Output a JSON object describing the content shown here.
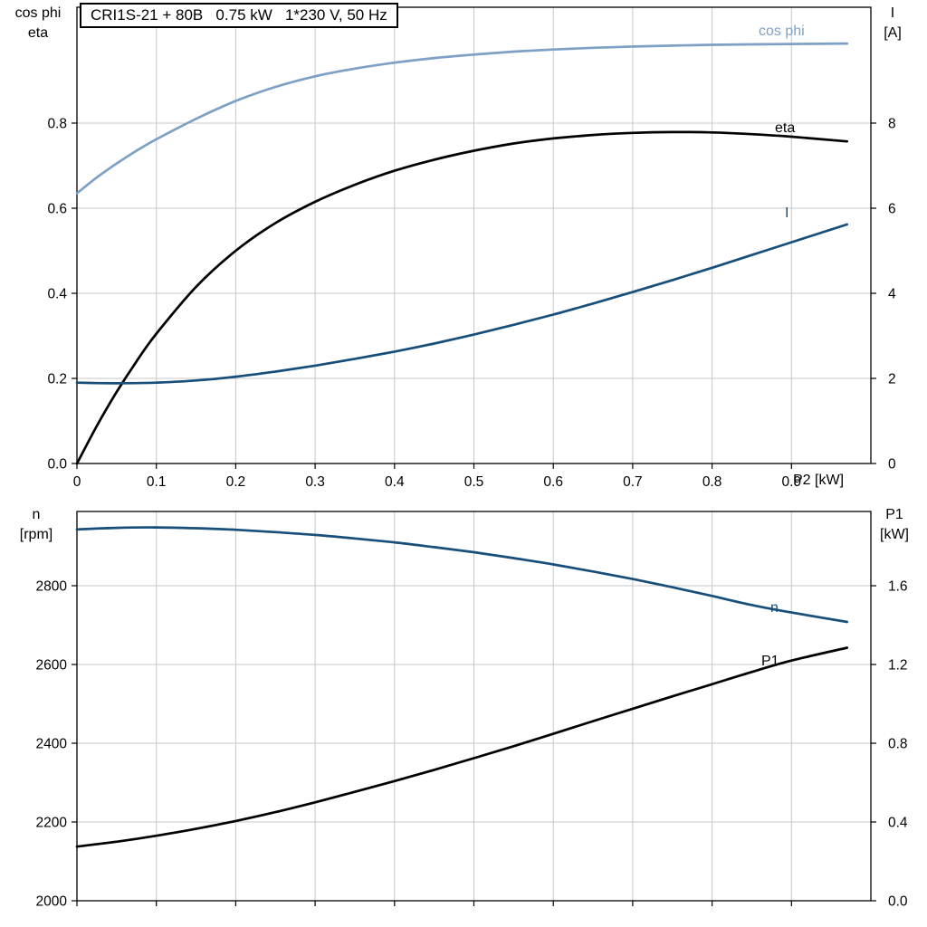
{
  "colors": {
    "background": "#ffffff",
    "grid": "#c8c8c8",
    "frame": "#000000",
    "light_blue": "#7da0c4",
    "dark_blue": "#174e7a",
    "black": "#000000"
  },
  "chart_data": [
    {
      "type": "line",
      "title": "CRI1S-21 + 80B   0.75 kW   1*230 V, 50 Hz",
      "xlabel": "P2 [kW]",
      "xlim": [
        0,
        1.0
      ],
      "x_ticks": [
        0,
        0.1,
        0.2,
        0.3,
        0.4,
        0.5,
        0.6,
        0.7,
        0.8,
        0.9
      ],
      "x_tick_labels": [
        "0",
        "0.1",
        "0.2",
        "0.3",
        "0.4",
        "0.5",
        "0.6",
        "0.7",
        "0.8",
        "0.9"
      ],
      "show_x_tick_labels": true,
      "grid": true,
      "left_axis": {
        "title_lines": [
          "cos phi",
          "eta"
        ],
        "lim": [
          0,
          1.0723
        ],
        "ticks": [
          0.0,
          0.2,
          0.4,
          0.6,
          0.8
        ],
        "tick_labels": [
          "0.0",
          "0.2",
          "0.4",
          "0.6",
          "0.8"
        ]
      },
      "right_axis": {
        "title_lines": [
          "I",
          "[A]"
        ],
        "lim": [
          0,
          10.723
        ],
        "ticks": [
          0,
          2,
          4,
          6,
          8
        ],
        "tick_labels": [
          "0",
          "2",
          "4",
          "6",
          "8"
        ]
      },
      "x": [
        0,
        0.025,
        0.05,
        0.075,
        0.1,
        0.15,
        0.2,
        0.25,
        0.3,
        0.35,
        0.4,
        0.45,
        0.5,
        0.55,
        0.6,
        0.65,
        0.7,
        0.75,
        0.8,
        0.85,
        0.9,
        0.97
      ],
      "series": [
        {
          "name": "cos phi",
          "axis": "left",
          "color": "#7da0c4",
          "values": [
            0.635,
            0.672,
            0.705,
            0.735,
            0.762,
            0.81,
            0.852,
            0.885,
            0.91,
            0.928,
            0.942,
            0.953,
            0.961,
            0.968,
            0.973,
            0.977,
            0.98,
            0.982,
            0.984,
            0.985,
            0.986,
            0.987
          ]
        },
        {
          "name": "eta",
          "axis": "left",
          "color": "#000000",
          "values": [
            0,
            0.088,
            0.168,
            0.24,
            0.305,
            0.415,
            0.5,
            0.565,
            0.615,
            0.655,
            0.688,
            0.714,
            0.735,
            0.752,
            0.764,
            0.772,
            0.777,
            0.779,
            0.778,
            0.774,
            0.768,
            0.757
          ]
        },
        {
          "name": "I",
          "axis": "right",
          "color": "#174e7a",
          "values": [
            1.9,
            1.89,
            1.885,
            1.89,
            1.9,
            1.95,
            2.04,
            2.16,
            2.3,
            2.46,
            2.63,
            2.82,
            3.03,
            3.26,
            3.5,
            3.76,
            4.03,
            4.31,
            4.6,
            4.9,
            5.2,
            5.62
          ]
        }
      ]
    },
    {
      "type": "line",
      "title": "",
      "xlabel": "",
      "xlim": [
        0,
        1.0
      ],
      "x_ticks": [
        0,
        0.1,
        0.2,
        0.3,
        0.4,
        0.5,
        0.6,
        0.7,
        0.8,
        0.9
      ],
      "x_tick_labels": [
        "0",
        "0.1",
        "0.2",
        "0.3",
        "0.4",
        "0.5",
        "0.6",
        "0.7",
        "0.8",
        "0.9"
      ],
      "show_x_tick_labels": false,
      "grid": true,
      "left_axis": {
        "title_lines": [
          "n",
          "[rpm]"
        ],
        "lim": [
          2000,
          2988.5
        ],
        "ticks": [
          2000,
          2200,
          2400,
          2600,
          2800
        ],
        "tick_labels": [
          "2000",
          "2200",
          "2400",
          "2600",
          "2800"
        ]
      },
      "right_axis": {
        "title_lines": [
          "P1",
          "[kW]"
        ],
        "lim": [
          0,
          1.9771
        ],
        "ticks": [
          0.0,
          0.4,
          0.8,
          1.2,
          1.6
        ],
        "tick_labels": [
          "0.0",
          "0.4",
          "0.8",
          "1.2",
          "1.6"
        ]
      },
      "x": [
        0,
        0.05,
        0.1,
        0.15,
        0.2,
        0.25,
        0.3,
        0.35,
        0.4,
        0.45,
        0.5,
        0.55,
        0.6,
        0.65,
        0.7,
        0.75,
        0.8,
        0.85,
        0.9,
        0.97
      ],
      "series": [
        {
          "name": "n",
          "axis": "left",
          "color": "#174e7a",
          "values": [
            2943,
            2947,
            2948,
            2946,
            2942,
            2936,
            2929,
            2920,
            2910,
            2898,
            2885,
            2870,
            2854,
            2836,
            2817,
            2796,
            2774,
            2751,
            2732,
            2708
          ]
        },
        {
          "name": "P1",
          "axis": "right",
          "color": "#000000",
          "values": [
            0.275,
            0.3,
            0.33,
            0.365,
            0.405,
            0.45,
            0.5,
            0.553,
            0.608,
            0.665,
            0.724,
            0.785,
            0.848,
            0.912,
            0.975,
            1.038,
            1.1,
            1.162,
            1.22,
            1.285
          ]
        }
      ]
    }
  ]
}
